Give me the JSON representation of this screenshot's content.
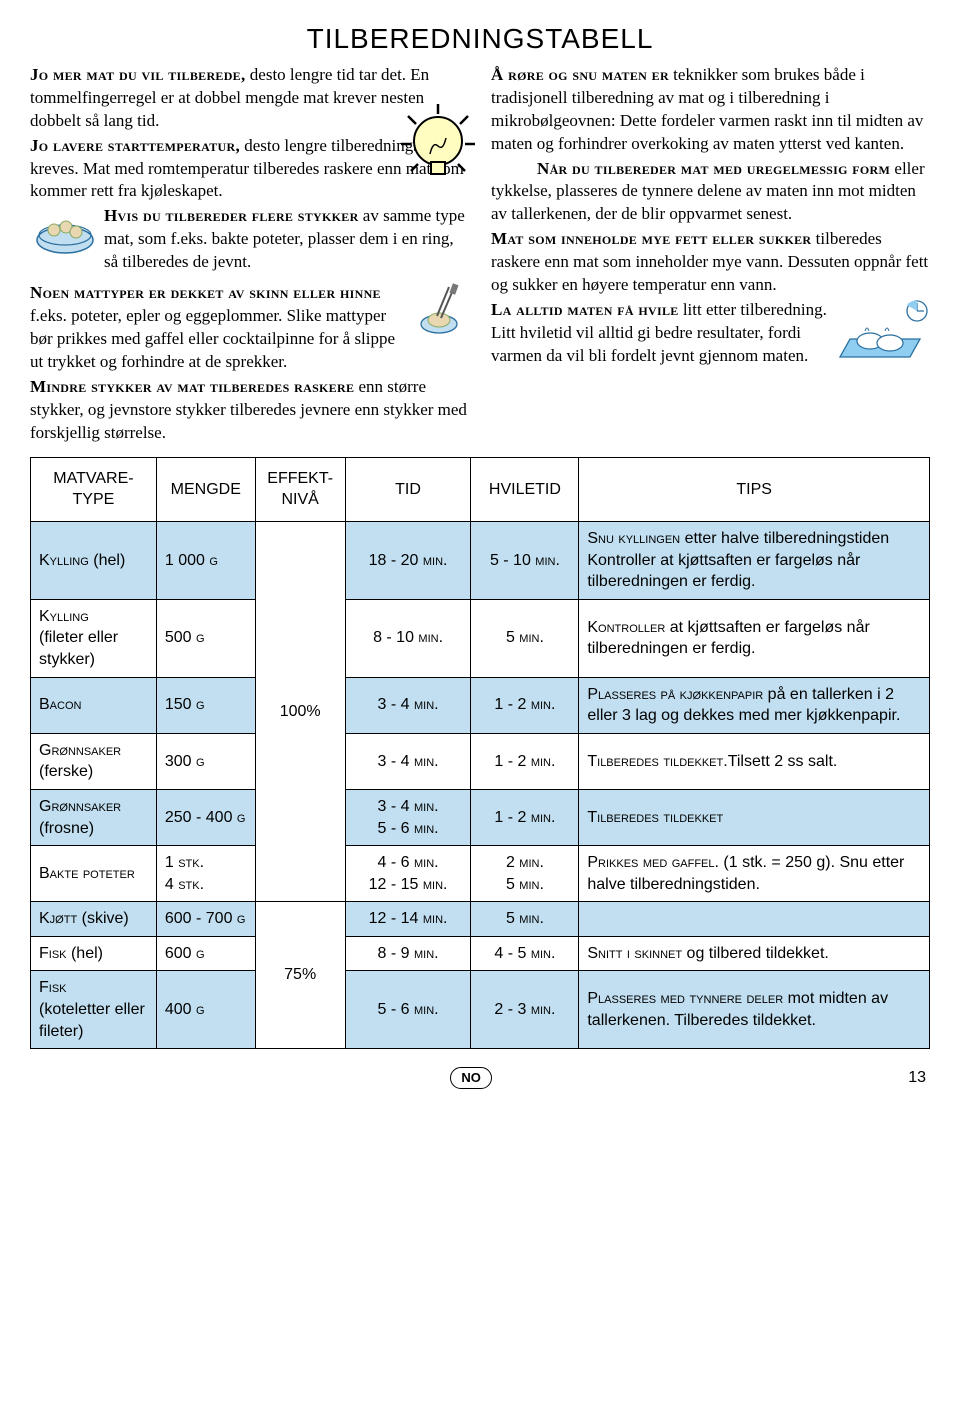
{
  "title": "TILBEREDNINGSTABELL",
  "left_col": {
    "p1_a": "Jo mer mat du vil tilberede,",
    "p1_b": " desto lengre tid tar det. En tommelfingerregel er at dobbel mengde mat krever nesten dobbelt så lang tid.",
    "p2_a": "Jo lavere starttemperatur,",
    "p2_b": " desto lengre tilberedningstid kreves. Mat med romtemperatur tilberedes raskere enn mat som kommer rett fra kjøleskapet.",
    "p3_a": "Hvis du tilbereder flere stykker",
    "p3_b": " av samme type mat, som f.eks. bakte poteter, plasser dem i en ring, så tilberedes de jevnt.",
    "p4_a": "Noen mattyper er dekket av skinn eller hinne",
    "p4_b": " f.eks. poteter, epler og eggeplommer. Slike mattyper bør prikkes med gaffel eller cocktailpinne for å slippe ut trykket og forhindre at de sprekker.",
    "p5_a": "Mindre stykker av mat tilberedes raskere",
    "p5_b": " enn større stykker, og jevnstore stykker tilberedes jevnere enn stykker med forskjellig størrelse."
  },
  "right_col": {
    "p1_a": "Å røre og snu maten er",
    "p1_b": " teknikker som brukes både i tradisjonell tilberedning av mat og i tilberedning i mikrobølgeovnen: Dette fordeler varmen raskt inn til midten av maten og forhindrer overkoking av maten ytterst ved kanten.",
    "p2_a": "Når du tilbereder mat med uregelmessig form",
    "p2_b": " eller tykkelse, plasseres de tynnere delene av maten inn mot midten av tallerkenen, der de blir oppvarmet senest.",
    "p3_a": "Mat som inneholde mye fett eller sukker",
    "p3_b": " tilberedes raskere enn mat som inneholder mye vann. Dessuten oppnår fett og sukker en høyere temperatur enn vann.",
    "p4_a": "La alltid maten få hvile",
    "p4_b": " litt etter tilberedning. Litt hviletid vil alltid gi bedre resultater, fordi varmen da vil bli fordelt jevnt gjennom maten."
  },
  "table": {
    "headers": [
      "MATVARE-\nTYPE",
      "MENGDE",
      "EFFEKT-\nNIVÅ",
      "TID",
      "HVILETID",
      "TIPS"
    ],
    "rows": [
      {
        "bg": "blue",
        "type_sc": "Kylling",
        "type_rest": " (hel)",
        "mengde_sc": "1 000 g",
        "tid": "18 - 20 min.",
        "hvile": "5 - 10 min.",
        "tips_sc": "Snu kyllingen",
        "tips_rest": " etter halve tilberedningstiden Kontroller at kjøttsaften er fargeløs når tilberedningen er ferdig."
      },
      {
        "bg": "white",
        "type_sc": "Kylling",
        "type_rest": "\n(fileter eller stykker)",
        "mengde_sc": "500 g",
        "tid": "8 - 10 min.",
        "hvile": "5 min.",
        "tips_sc": "Kontroller",
        "tips_rest": " at kjøttsaften er fargeløs når tilberedningen er ferdig."
      },
      {
        "bg": "blue",
        "type_sc": "Bacon",
        "type_rest": "",
        "mengde_sc": "150 g",
        "tid": "3 - 4 min.",
        "hvile": "1 - 2 min.",
        "tips_sc": "Plasseres på kjøkkenpapir",
        "tips_rest": " på en tallerken i 2 eller 3 lag og dekkes med mer kjøkkenpapir."
      },
      {
        "bg": "white",
        "type_sc": "Grønnsaker",
        "type_rest": "\n(ferske)",
        "mengde_sc": "300 g",
        "tid": "3 - 4 min.",
        "hvile": "1 - 2 min.",
        "tips_sc": "Tilberedes tildekket.",
        "tips_rest": "Tilsett 2 ss salt."
      },
      {
        "bg": "blue",
        "type_sc": "Grønnsaker",
        "type_rest": "\n(frosne)",
        "mengde_sc": "250 - 400 g",
        "tid": "3 - 4 min.\n5 - 6 min.",
        "hvile": "1 - 2 min.",
        "tips_sc": "Tilberedes tildekket",
        "tips_rest": ""
      },
      {
        "bg": "white",
        "type_sc": "Bakte poteter",
        "type_rest": "",
        "mengde_sc": "1 stk.\n4 stk.",
        "tid": "4 - 6 min.\n12 - 15 min.",
        "hvile": "2 min.\n5 min.",
        "tips_sc": "Prikkes med gaffel.",
        "tips_rest": " (1 stk. = 250 g). Snu etter halve tilberedningstiden."
      },
      {
        "bg": "blue",
        "type_sc": "Kjøtt",
        "type_rest": " (skive)",
        "mengde_sc": "600 - 700 g",
        "tid": "12 - 14 min.",
        "hvile": "5 min.",
        "tips_sc": "",
        "tips_rest": ""
      },
      {
        "bg": "white",
        "type_sc": "Fisk",
        "type_rest": " (hel)",
        "mengde_sc": "600 g",
        "tid": "8 - 9 min.",
        "hvile": "4 - 5 min.",
        "tips_sc": "Snitt i skinnet",
        "tips_rest": " og tilbered tildekket."
      },
      {
        "bg": "blue",
        "type_sc": "Fisk",
        "type_rest": "\n(koteletter eller fileter)",
        "mengde_sc": "400 g",
        "tid": "5 - 6 min.",
        "hvile": "2 - 3 min.",
        "tips_sc": "Plasseres med tynnere deler",
        "tips_rest": " mot midten av tallerkenen. Tilberedes tildekket."
      }
    ],
    "effekt": [
      "100%",
      "75%"
    ],
    "effekt_spans": [
      6,
      3
    ]
  },
  "footer": {
    "lang": "NO",
    "page": "13"
  },
  "colors": {
    "row_blue": "#c1dff0",
    "row_white": "#ffffff",
    "border": "#000000"
  }
}
